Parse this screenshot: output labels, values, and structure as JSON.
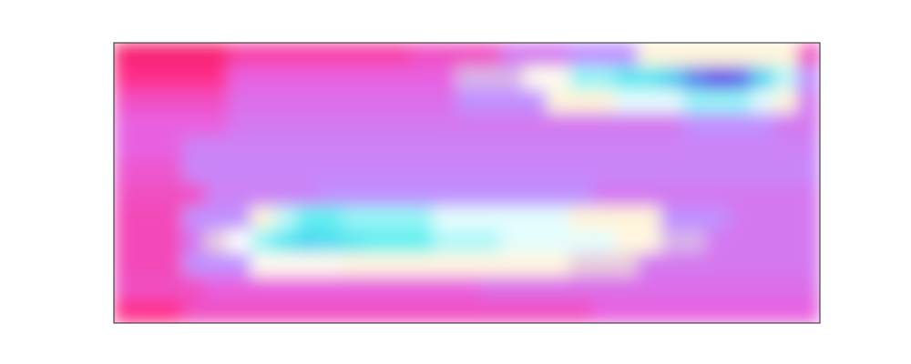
{
  "chart_data": {
    "type": "heatmap",
    "tick_labels": false,
    "zlim": [
      0,
      10
    ],
    "cells": [
      [
        1.5,
        1.5,
        1.5,
        1.5,
        1.5,
        2.5,
        2.5,
        2.5,
        2.5,
        2.5,
        2.5,
        2.5,
        2.5,
        3,
        3,
        3,
        3,
        4,
        4,
        4,
        4.5,
        4.5,
        4.5,
        5.5,
        5.5,
        5.5,
        5.5,
        5.5,
        5.5,
        5.5,
        3
      ],
      [
        2,
        2,
        2,
        2,
        2,
        3.5,
        3.5,
        3.5,
        3.5,
        3.5,
        3.5,
        3.5,
        3.5,
        3.5,
        3.5,
        4.8,
        4.8,
        4.8,
        5.8,
        5.8,
        6.8,
        6.8,
        7.5,
        7.5,
        8.3,
        9.2,
        9.8,
        9.5,
        8,
        6.5,
        4.5
      ],
      [
        3,
        3,
        3,
        3,
        3,
        3.8,
        3.8,
        3.8,
        3.8,
        3.8,
        3.8,
        3.8,
        3.8,
        3.8,
        3.8,
        4.5,
        4.5,
        4.5,
        4.5,
        5.5,
        5.5,
        5.5,
        6.2,
        6.2,
        6.2,
        6.8,
        6.8,
        6.8,
        6.2,
        5.5,
        4
      ],
      [
        3.5,
        3.5,
        3.5,
        3.5,
        3.5,
        4,
        4,
        4,
        4,
        4,
        4,
        4,
        4,
        4,
        4,
        4,
        4,
        4,
        4,
        4,
        4,
        4,
        4,
        4,
        4,
        4.5,
        4.5,
        4.5,
        4.5,
        4,
        4
      ],
      [
        3.5,
        3.5,
        3.5,
        4.2,
        4.2,
        4.2,
        4.2,
        4.2,
        4.2,
        4.2,
        4.2,
        4.2,
        4.2,
        4.2,
        4.2,
        4.2,
        4.2,
        4.2,
        4.2,
        4.2,
        4.2,
        4.2,
        4.2,
        4.2,
        4.2,
        4.2,
        4.2,
        4.2,
        4.2,
        4.2,
        4.2
      ],
      [
        3.2,
        3.2,
        3.2,
        4.3,
        4.3,
        4.3,
        4.3,
        4.3,
        4.3,
        4.3,
        4.3,
        4.3,
        4.3,
        4.3,
        4.3,
        4.3,
        4.3,
        4.3,
        4.3,
        4.3,
        4.3,
        4.3,
        4.3,
        4.3,
        4.3,
        4.3,
        4.3,
        4.3,
        4.3,
        4.3,
        4.3
      ],
      [
        3,
        3,
        3,
        3,
        4.2,
        4.2,
        4.2,
        4.2,
        4.2,
        4.5,
        4.5,
        4.5,
        4.5,
        4.5,
        4.5,
        4.5,
        4.5,
        4.5,
        4.5,
        4.5,
        4.5,
        4,
        4,
        4,
        4,
        4,
        4,
        4,
        4,
        4,
        4
      ],
      [
        2.8,
        2.8,
        2.8,
        4.5,
        4.5,
        4.5,
        5.5,
        6.5,
        7.2,
        7.2,
        6.8,
        6.8,
        6.8,
        6.8,
        6.2,
        6.2,
        6.2,
        6.2,
        6.2,
        6.2,
        5.5,
        5.5,
        5.5,
        5.5,
        4.5,
        4.5,
        4.5,
        4,
        4,
        4,
        4
      ],
      [
        2.8,
        2.8,
        2.8,
        4,
        5,
        6,
        6.8,
        7.5,
        8,
        7.8,
        7.5,
        7.2,
        7.2,
        7.2,
        6.6,
        6.6,
        6.6,
        6.2,
        6.2,
        6.2,
        6.2,
        6.2,
        5.6,
        5.6,
        4.8,
        4.8,
        4,
        4,
        4,
        4,
        4
      ],
      [
        2.8,
        2.8,
        2.8,
        4.5,
        4.5,
        4.5,
        5.8,
        5.8,
        5.8,
        5.8,
        5.6,
        5.6,
        5.6,
        5.6,
        5.6,
        5.6,
        5.6,
        5.6,
        5.6,
        5.6,
        5,
        5,
        5,
        4,
        4,
        4,
        4,
        4,
        4,
        4,
        4
      ],
      [
        3,
        3,
        3,
        3,
        3.5,
        3.5,
        3.5,
        3.5,
        3.5,
        3.5,
        3.5,
        3.5,
        3.5,
        3.5,
        3.5,
        3.5,
        3.8,
        3.8,
        3.8,
        3.8,
        3.8,
        3.8,
        3.8,
        3.8,
        3.8,
        3.8,
        3.8,
        3.8,
        3.8,
        3.8,
        3.8
      ],
      [
        2,
        2,
        2,
        3,
        3,
        3,
        3,
        3,
        3,
        3,
        3,
        3,
        3,
        3,
        3,
        3,
        3,
        3,
        3,
        3,
        3,
        3.5,
        3.5,
        3.5,
        3.5,
        3.5,
        3.5,
        3.5,
        3.5,
        3.5,
        3.5
      ]
    ]
  }
}
